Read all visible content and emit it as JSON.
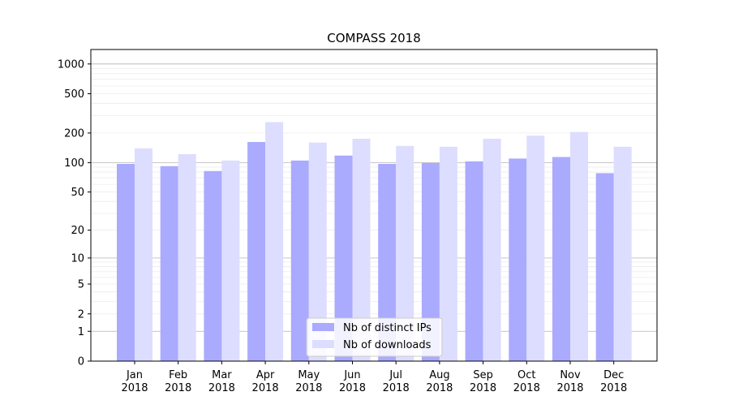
{
  "chart_data": {
    "type": "bar",
    "title": "COMPASS 2018",
    "xlabel": "",
    "ylabel": "",
    "yscale": "log1p",
    "ylim": [
      0,
      1400
    ],
    "yticks": [
      0,
      1,
      2,
      5,
      10,
      20,
      50,
      100,
      200,
      500,
      1000
    ],
    "categories": [
      "Jan\n2018",
      "Feb\n2018",
      "Mar\n2018",
      "Apr\n2018",
      "May\n2018",
      "Jun\n2018",
      "Jul\n2018",
      "Aug\n2018",
      "Sep\n2018",
      "Oct\n2018",
      "Nov\n2018",
      "Dec\n2018"
    ],
    "series": [
      {
        "name": "Nb of distinct IPs",
        "color": "#aaaaff",
        "values": [
          97,
          92,
          82,
          162,
          105,
          118,
          97,
          99,
          103,
          110,
          114,
          78
        ]
      },
      {
        "name": "Nb of downloads",
        "color": "#ddddff",
        "values": [
          140,
          122,
          105,
          258,
          160,
          175,
          148,
          145,
          175,
          188,
          205,
          145
        ]
      }
    ],
    "grid": true,
    "legend_position": "bottom-center"
  }
}
